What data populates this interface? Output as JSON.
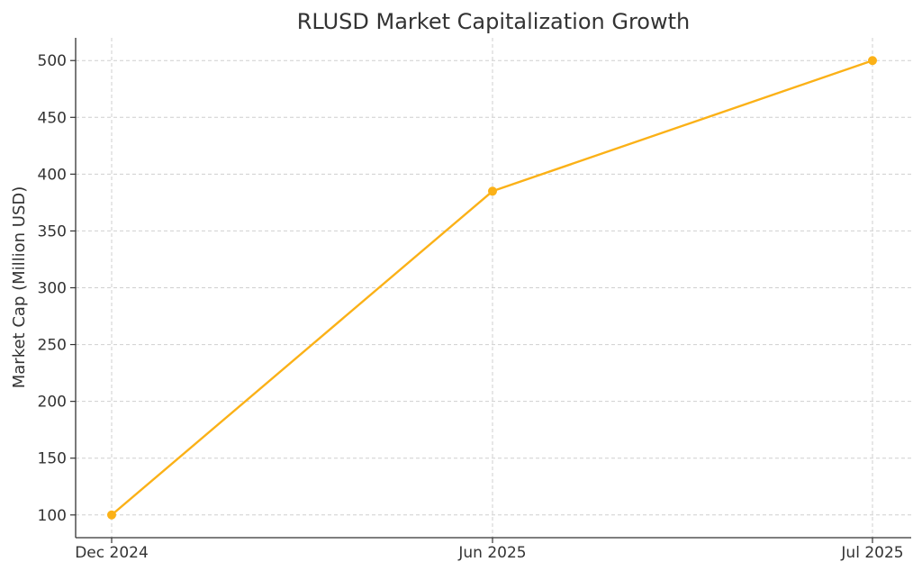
{
  "chart_data": {
    "type": "line",
    "title": "RLUSD Market Capitalization Growth",
    "xlabel": "",
    "ylabel": "Market Cap (Million USD)",
    "categories": [
      "Dec 2024",
      "Jun 2025",
      "Jul 2025"
    ],
    "series": [
      {
        "values": [
          100,
          385,
          500
        ],
        "color": "#FBB117",
        "marker": "circle"
      }
    ],
    "ylim": [
      80,
      520
    ],
    "yticks": [
      100,
      150,
      200,
      250,
      300,
      350,
      400,
      450,
      500
    ],
    "grid": true,
    "legend": "none"
  }
}
